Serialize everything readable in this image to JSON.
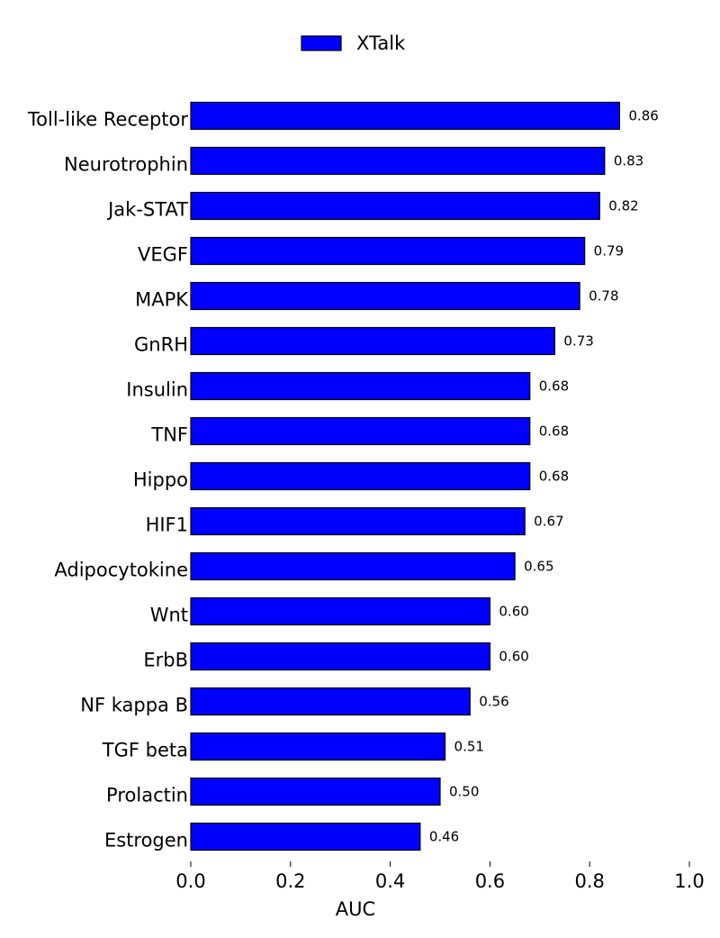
{
  "colors": {
    "bar": "#0000ff",
    "bar_edge": "#000000",
    "background": "#ffffff"
  },
  "chart_data": {
    "type": "bar",
    "orientation": "horizontal",
    "categories": [
      "Toll-like Receptor",
      "Neurotrophin",
      "Jak-STAT",
      "VEGF",
      "MAPK",
      "GnRH",
      "Insulin",
      "TNF",
      "Hippo",
      "HIF1",
      "Adipocytokine",
      "Wnt",
      "ErbB",
      "NF kappa B",
      "TGF beta",
      "Prolactin",
      "Estrogen"
    ],
    "series": [
      {
        "name": "XTalk",
        "values": [
          0.86,
          0.83,
          0.82,
          0.79,
          0.78,
          0.73,
          0.68,
          0.68,
          0.68,
          0.67,
          0.65,
          0.6,
          0.6,
          0.56,
          0.51,
          0.5,
          0.46
        ],
        "labels": [
          "0.86",
          "0.83",
          "0.82",
          "0.79",
          "0.78",
          "0.73",
          "0.68",
          "0.68",
          "0.68",
          "0.67",
          "0.65",
          "0.60",
          "0.60",
          "0.56",
          "0.51",
          "0.50",
          "0.46"
        ]
      }
    ],
    "xlabel": "AUC",
    "xlim": [
      0.0,
      1.0
    ],
    "xticks": [
      "0.0",
      "0.2",
      "0.4",
      "0.6",
      "0.8",
      "1.0"
    ],
    "grid": false,
    "legend": {
      "position": "top-center"
    }
  }
}
